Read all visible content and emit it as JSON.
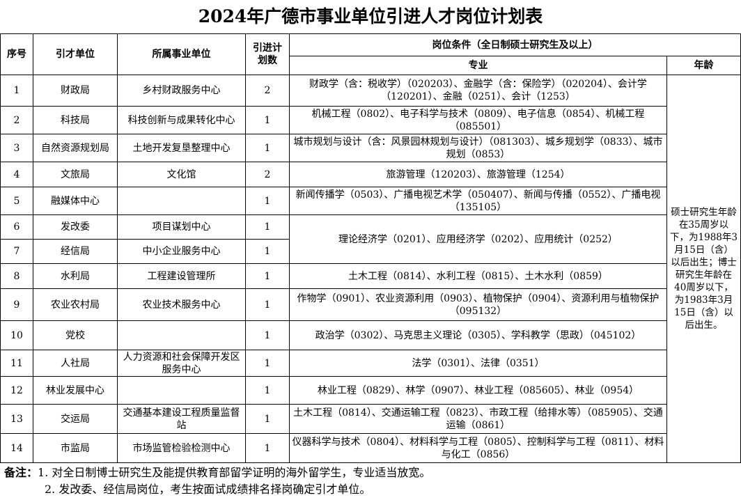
{
  "title": "2024年广德市事业单位引进人才岗位计划表",
  "headers": {
    "seq": "序号",
    "unit": "引才单位",
    "affiliated": "所属事业单位",
    "count": "引进计划数",
    "conditions": "岗位条件（全日制硕士研究生及以上）",
    "major": "专业",
    "age": "年龄"
  },
  "rows": [
    {
      "seq": "1",
      "unit": "财政局",
      "affiliated": "乡村财政服务中心",
      "count": "2",
      "major": "财政学（含：税收学）（020203）、金融学（含：保险学）（020204）、会计学（120201）、金融（0251）、会计（1253）"
    },
    {
      "seq": "2",
      "unit": "科技局",
      "affiliated": "科技创新与成果转化中心",
      "count": "1",
      "major": "机械工程（0802）、电子科学与技术（0809）、电子信息（0854）、机械工程（085501）"
    },
    {
      "seq": "3",
      "unit": "自然资源规划局",
      "affiliated": "土地开发复垦整理中心",
      "count": "1",
      "major": "城市规划与设计（含：风景园林规划与设计）（081303）、城乡规划学（0833）、城市规划（0853）"
    },
    {
      "seq": "4",
      "unit": "文旅局",
      "affiliated": "文化馆",
      "count": "2",
      "major": "旅游管理（120203）、旅游管理（1254）"
    },
    {
      "seq": "5",
      "unit": "融媒体中心",
      "affiliated": "",
      "count": "1",
      "major": "新闻传播学（0503）、广播电视艺术学（050407）、新闻与传播（0552）、广播电视（135105）"
    },
    {
      "seq": "6",
      "unit": "发改委",
      "affiliated": "项目谋划中心",
      "count": "1",
      "major": "理论经济学（0201）、应用经济学（0202）、应用统计（0252）"
    },
    {
      "seq": "7",
      "unit": "经信局",
      "affiliated": "中小企业服务中心",
      "count": "1",
      "major": ""
    },
    {
      "seq": "8",
      "unit": "水利局",
      "affiliated": "工程建设管理所",
      "count": "1",
      "major": "土木工程（0814）、水利工程（0815）、土木水利（0859）"
    },
    {
      "seq": "9",
      "unit": "农业农村局",
      "affiliated": "农业技术服务中心",
      "count": "1",
      "major": "作物学（0901）、农业资源利用（0903）、植物保护（0904）、资源利用与植物保护（095132）"
    },
    {
      "seq": "10",
      "unit": "党校",
      "affiliated": "",
      "count": "1",
      "major": "政治学（0302）、马克思主义理论（0305）、学科教学（思政）（045102）"
    },
    {
      "seq": "11",
      "unit": "人社局",
      "affiliated": "人力资源和社会保障开发区服务中心",
      "count": "1",
      "major": "法学（0301）、法律（0351）"
    },
    {
      "seq": "12",
      "unit": "林业发展中心",
      "affiliated": "",
      "count": "1",
      "major": "林业工程（0829）、林学（0907）、林业工程（085605）、林业（0954）"
    },
    {
      "seq": "13",
      "unit": "交运局",
      "affiliated": "交通基本建设工程质量监督站",
      "count": "1",
      "major": "土木工程（0814）、交通运输工程（0823）、市政工程（给排水等）（085905）、交通运输（0861）"
    },
    {
      "seq": "14",
      "unit": "市监局",
      "affiliated": "市场监管检验检测中心",
      "count": "1",
      "major": "仪器科学与技术（0804）、材料科学与工程（0805）、控制科学与工程（0811）、材料与化工（0856）"
    }
  ],
  "age_requirement": "硕士研究生年龄在35周岁以下，为1988年3月15日（含）以后出生；博士研究生年龄在40周岁以下，为1983年3月15日（含）以后出生。",
  "notes": {
    "label": "备注：",
    "items": [
      "1. 对全日制博士研究生及能提供教育部留学证明的海外留学生，专业适当放宽。",
      "2. 发改委、经信局岗位，考生按面试成绩排名择岗确定引才单位。"
    ]
  }
}
